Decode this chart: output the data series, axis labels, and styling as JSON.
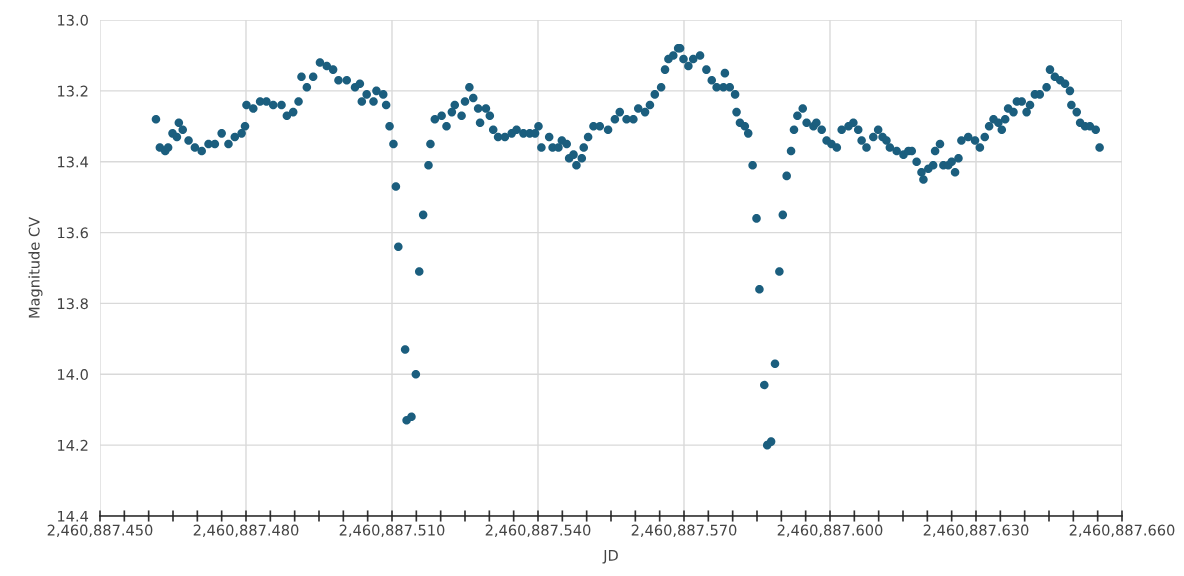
{
  "chart_data": {
    "type": "scatter",
    "xlabel": "JD",
    "ylabel": "Magnitude CV",
    "grid": true,
    "marker": "circle",
    "xlim": [
      2460887.45,
      2460887.66
    ],
    "ylim": [
      14.4,
      13.0
    ],
    "xticks": [
      {
        "value": 2460887.45,
        "label": "2,460,887.450"
      },
      {
        "value": 2460887.455,
        "label": null
      },
      {
        "value": 2460887.46,
        "label": null
      },
      {
        "value": 2460887.465,
        "label": null
      },
      {
        "value": 2460887.47,
        "label": null
      },
      {
        "value": 2460887.475,
        "label": null
      },
      {
        "value": 2460887.48,
        "label": "2,460,887.480"
      },
      {
        "value": 2460887.485,
        "label": null
      },
      {
        "value": 2460887.49,
        "label": null
      },
      {
        "value": 2460887.495,
        "label": null
      },
      {
        "value": 2460887.5,
        "label": null
      },
      {
        "value": 2460887.505,
        "label": null
      },
      {
        "value": 2460887.51,
        "label": "2,460,887.510"
      },
      {
        "value": 2460887.515,
        "label": null
      },
      {
        "value": 2460887.52,
        "label": null
      },
      {
        "value": 2460887.525,
        "label": null
      },
      {
        "value": 2460887.53,
        "label": null
      },
      {
        "value": 2460887.535,
        "label": null
      },
      {
        "value": 2460887.54,
        "label": "2,460,887.540"
      },
      {
        "value": 2460887.545,
        "label": null
      },
      {
        "value": 2460887.55,
        "label": null
      },
      {
        "value": 2460887.555,
        "label": null
      },
      {
        "value": 2460887.56,
        "label": null
      },
      {
        "value": 2460887.565,
        "label": null
      },
      {
        "value": 2460887.57,
        "label": "2,460,887.570"
      },
      {
        "value": 2460887.575,
        "label": null
      },
      {
        "value": 2460887.58,
        "label": null
      },
      {
        "value": 2460887.585,
        "label": null
      },
      {
        "value": 2460887.59,
        "label": null
      },
      {
        "value": 2460887.595,
        "label": null
      },
      {
        "value": 2460887.6,
        "label": "2,460,887.600"
      },
      {
        "value": 2460887.605,
        "label": null
      },
      {
        "value": 2460887.61,
        "label": null
      },
      {
        "value": 2460887.615,
        "label": null
      },
      {
        "value": 2460887.62,
        "label": null
      },
      {
        "value": 2460887.625,
        "label": null
      },
      {
        "value": 2460887.63,
        "label": "2,460,887.630"
      },
      {
        "value": 2460887.635,
        "label": null
      },
      {
        "value": 2460887.64,
        "label": null
      },
      {
        "value": 2460887.645,
        "label": null
      },
      {
        "value": 2460887.65,
        "label": null
      },
      {
        "value": 2460887.655,
        "label": null
      },
      {
        "value": 2460887.66,
        "label": "2,460,887.660"
      }
    ],
    "yticks": [
      {
        "value": 13.0,
        "label": "13.0"
      },
      {
        "value": 13.2,
        "label": "13.2"
      },
      {
        "value": 13.4,
        "label": "13.4"
      },
      {
        "value": 13.6,
        "label": "13.6"
      },
      {
        "value": 13.8,
        "label": "13.8"
      },
      {
        "value": 14.0,
        "label": "14.0"
      },
      {
        "value": 14.2,
        "label": "14.2"
      },
      {
        "value": 14.4,
        "label": "14.4"
      }
    ],
    "series": [
      {
        "color": "#1b5e7e",
        "x": [
          2460887.4615,
          2460887.4623,
          2460887.4634,
          2460887.464,
          2460887.4649,
          2460887.4658,
          2460887.4662,
          2460887.467,
          2460887.4682,
          2460887.4695,
          2460887.4709,
          2460887.4723,
          2460887.4736,
          2460887.475,
          2460887.4764,
          2460887.4777,
          2460887.4791,
          2460887.4798,
          2460887.4801,
          2460887.4815,
          2460887.4829,
          2460887.4842,
          2460887.4856,
          2460887.4873,
          2460887.4884,
          2460887.4897,
          2460887.4908,
          2460887.4914,
          2460887.4925,
          2460887.4938,
          2460887.4952,
          2460887.4966,
          2460887.4979,
          2460887.499,
          2460887.5007,
          2460887.5024,
          2460887.5034,
          2460887.5038,
          2460887.5048,
          2460887.5062,
          2460887.5068,
          2460887.5082,
          2460887.5088,
          2460887.5095,
          2460887.5103,
          2460887.5108,
          2460887.5113,
          2460887.5127,
          2460887.513,
          2460887.514,
          2460887.5149,
          2460887.5156,
          2460887.5164,
          2460887.5175,
          2460887.5179,
          2460887.5188,
          2460887.5202,
          2460887.5212,
          2460887.5223,
          2460887.5229,
          2460887.5243,
          2460887.525,
          2460887.5259,
          2460887.5267,
          2460887.5277,
          2460887.5281,
          2460887.5293,
          2460887.5301,
          2460887.5308,
          2460887.5318,
          2460887.5332,
          2460887.5346,
          2460887.5356,
          2460887.537,
          2460887.5383,
          2460887.5394,
          2460887.5401,
          2460887.5407,
          2460887.5423,
          2460887.543,
          2460887.5442,
          2460887.5449,
          2460887.5459,
          2460887.5464,
          2460887.5473,
          2460887.5479,
          2460887.549,
          2460887.5494,
          2460887.5503,
          2460887.5514,
          2460887.5527,
          2460887.5544,
          2460887.5558,
          2460887.5568,
          2460887.5582,
          2460887.5596,
          2460887.5606,
          2460887.562,
          2460887.563,
          2460887.564,
          2460887.5653,
          2460887.5661,
          2460887.5668,
          2460887.5678,
          2460887.5688,
          2460887.5692,
          2460887.5699,
          2460887.5709,
          2460887.5719,
          2460887.5733,
          2460887.5746,
          2460887.5757,
          2460887.5767,
          2460887.5781,
          2460887.5784,
          2460887.5794,
          2460887.5805,
          2460887.5808,
          2460887.5815,
          2460887.5825,
          2460887.5832,
          2460887.5841,
          2460887.5849,
          2460887.5855,
          2460887.5865,
          2460887.5871,
          2460887.5879,
          2460887.5887,
          2460887.5896,
          2460887.5903,
          2460887.5911,
          2460887.592,
          2460887.5926,
          2460887.5933,
          2460887.5944,
          2460887.5952,
          2460887.5966,
          2460887.5972,
          2460887.5983,
          2460887.5993,
          2460887.6003,
          2460887.6014,
          2460887.6024,
          2460887.6038,
          2460887.6048,
          2460887.6058,
          2460887.6065,
          2460887.6075,
          2460887.6089,
          2460887.6099,
          2460887.6108,
          2460887.6116,
          2460887.6123,
          2460887.6137,
          2460887.6151,
          2460887.6161,
          2460887.6168,
          2460887.6178,
          2460887.6188,
          2460887.6192,
          2460887.6202,
          2460887.6212,
          2460887.6216,
          2460887.6226,
          2460887.6233,
          2460887.6243,
          2460887.625,
          2460887.6257,
          2460887.6264,
          2460887.627,
          2460887.6284,
          2460887.6298,
          2460887.6308,
          2460887.6318,
          2460887.6327,
          2460887.6336,
          2460887.6346,
          2460887.6353,
          2460887.636,
          2460887.6366,
          2460887.6377,
          2460887.6384,
          2460887.6394,
          2460887.6404,
          2460887.6411,
          2460887.6421,
          2460887.6431,
          2460887.6445,
          2460887.6452,
          2460887.6462,
          2460887.6473,
          2460887.6483,
          2460887.6493,
          2460887.6496,
          2460887.6507,
          2460887.6514,
          2460887.6524,
          2460887.6534,
          2460887.6546,
          2460887.6554
        ],
        "values": [
          13.28,
          13.36,
          13.37,
          13.36,
          13.32,
          13.33,
          13.29,
          13.31,
          13.34,
          13.36,
          13.37,
          13.35,
          13.35,
          13.32,
          13.35,
          13.33,
          13.32,
          13.3,
          13.24,
          13.25,
          13.23,
          13.23,
          13.24,
          13.24,
          13.27,
          13.26,
          13.23,
          13.16,
          13.19,
          13.16,
          13.12,
          13.13,
          13.14,
          13.17,
          13.17,
          13.19,
          13.18,
          13.23,
          13.21,
          13.23,
          13.2,
          13.21,
          13.24,
          13.3,
          13.35,
          13.47,
          13.64,
          13.93,
          14.13,
          14.12,
          14.0,
          13.71,
          13.55,
          13.41,
          13.35,
          13.28,
          13.27,
          13.3,
          13.26,
          13.24,
          13.27,
          13.23,
          13.19,
          13.22,
          13.25,
          13.29,
          13.25,
          13.27,
          13.31,
          13.33,
          13.33,
          13.32,
          13.31,
          13.32,
          13.32,
          13.32,
          13.3,
          13.36,
          13.33,
          13.36,
          13.36,
          13.34,
          13.35,
          13.39,
          13.38,
          13.41,
          13.39,
          13.36,
          13.33,
          13.3,
          13.3,
          13.31,
          13.28,
          13.26,
          13.28,
          13.28,
          13.25,
          13.26,
          13.24,
          13.21,
          13.19,
          13.14,
          13.11,
          13.1,
          13.08,
          13.08,
          13.11,
          13.13,
          13.11,
          13.1,
          13.14,
          13.17,
          13.19,
          13.19,
          13.15,
          13.19,
          13.21,
          13.26,
          13.29,
          13.3,
          13.32,
          13.41,
          13.56,
          13.76,
          14.03,
          14.2,
          14.19,
          13.97,
          13.71,
          13.55,
          13.44,
          13.37,
          13.31,
          13.27,
          13.25,
          13.29,
          13.3,
          13.29,
          13.31,
          13.34,
          13.35,
          13.36,
          13.31,
          13.3,
          13.29,
          13.31,
          13.34,
          13.36,
          13.33,
          13.31,
          13.33,
          13.34,
          13.36,
          13.37,
          13.38,
          13.37,
          13.37,
          13.4,
          13.43,
          13.45,
          13.42,
          13.41,
          13.37,
          13.35,
          13.41,
          13.41,
          13.4,
          13.43,
          13.39,
          13.34,
          13.33,
          13.34,
          13.36,
          13.33,
          13.3,
          13.28,
          13.29,
          13.31,
          13.28,
          13.25,
          13.26,
          13.23,
          13.23,
          13.26,
          13.24,
          13.21,
          13.21,
          13.19,
          13.14,
          13.16,
          13.17,
          13.18,
          13.2,
          13.24,
          13.26,
          13.29,
          13.3,
          13.3,
          13.31,
          13.36
        ]
      }
    ]
  }
}
